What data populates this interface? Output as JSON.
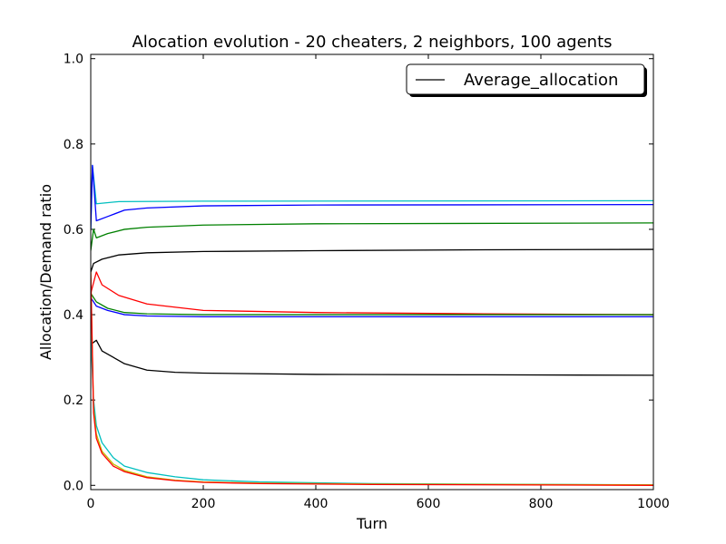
{
  "chart_data": {
    "type": "line",
    "title": "Alocation evolution - 20 cheaters, 2 neighbors, 100 agents",
    "xlabel": "Turn",
    "ylabel": "Allocation/Demand ratio",
    "xlim": [
      0,
      1000
    ],
    "ylim": [
      -0.01,
      1.01
    ],
    "xticks": [
      0,
      200,
      400,
      600,
      800,
      1000
    ],
    "xtick_labels": [
      "0",
      "200",
      "400",
      "600",
      "800",
      "1000"
    ],
    "yticks": [
      0.0,
      0.2,
      0.4,
      0.6,
      0.8,
      1.0
    ],
    "ytick_labels": [
      "0.0",
      "0.2",
      "0.4",
      "0.6",
      "0.8",
      "1.0"
    ],
    "grid": false,
    "legend": {
      "position": "top-right",
      "entries": [
        "Average_allocation"
      ]
    },
    "colors": {
      "cyan": "#00bfbf",
      "blue": "#0000ff",
      "green": "#008000",
      "black": "#000000",
      "red": "#ff0000",
      "olive": "#bfbf00"
    },
    "series": [
      {
        "name": "Average_allocation",
        "color": "#000000",
        "points": [
          [
            0,
            0.5
          ],
          [
            5,
            0.52
          ],
          [
            20,
            0.53
          ],
          [
            50,
            0.54
          ],
          [
            100,
            0.545
          ],
          [
            200,
            0.548
          ],
          [
            400,
            0.55
          ],
          [
            700,
            0.552
          ],
          [
            1000,
            0.553
          ]
        ]
      },
      {
        "color": "#00bfbf",
        "points": [
          [
            0,
            0.6
          ],
          [
            3,
            0.75
          ],
          [
            10,
            0.66
          ],
          [
            50,
            0.665
          ],
          [
            200,
            0.666
          ],
          [
            1000,
            0.667
          ]
        ]
      },
      {
        "color": "#0000ff",
        "points": [
          [
            0,
            0.6
          ],
          [
            3,
            0.75
          ],
          [
            10,
            0.62
          ],
          [
            30,
            0.63
          ],
          [
            60,
            0.645
          ],
          [
            100,
            0.65
          ],
          [
            200,
            0.655
          ],
          [
            400,
            0.657
          ],
          [
            1000,
            0.658
          ]
        ]
      },
      {
        "color": "#008000",
        "points": [
          [
            0,
            0.55
          ],
          [
            5,
            0.6
          ],
          [
            10,
            0.58
          ],
          [
            30,
            0.59
          ],
          [
            60,
            0.6
          ],
          [
            100,
            0.605
          ],
          [
            200,
            0.61
          ],
          [
            400,
            0.613
          ],
          [
            1000,
            0.615
          ]
        ]
      },
      {
        "color": "#ff0000",
        "points": [
          [
            0,
            0.45
          ],
          [
            10,
            0.5
          ],
          [
            20,
            0.47
          ],
          [
            50,
            0.445
          ],
          [
            100,
            0.425
          ],
          [
            200,
            0.41
          ],
          [
            400,
            0.405
          ],
          [
            700,
            0.402
          ],
          [
            1000,
            0.4
          ]
        ]
      },
      {
        "color": "#0000ff",
        "points": [
          [
            0,
            0.44
          ],
          [
            10,
            0.42
          ],
          [
            30,
            0.41
          ],
          [
            60,
            0.4
          ],
          [
            100,
            0.397
          ],
          [
            200,
            0.395
          ],
          [
            400,
            0.395
          ],
          [
            1000,
            0.395
          ]
        ]
      },
      {
        "color": "#008000",
        "points": [
          [
            0,
            0.45
          ],
          [
            10,
            0.43
          ],
          [
            30,
            0.415
          ],
          [
            60,
            0.405
          ],
          [
            100,
            0.402
          ],
          [
            200,
            0.4
          ],
          [
            400,
            0.4
          ],
          [
            1000,
            0.4
          ]
        ]
      },
      {
        "color": "#000000",
        "points": [
          [
            0,
            0.33
          ],
          [
            10,
            0.34
          ],
          [
            20,
            0.315
          ],
          [
            40,
            0.3
          ],
          [
            60,
            0.285
          ],
          [
            100,
            0.27
          ],
          [
            150,
            0.265
          ],
          [
            200,
            0.263
          ],
          [
            400,
            0.26
          ],
          [
            700,
            0.259
          ],
          [
            1000,
            0.258
          ]
        ]
      },
      {
        "color": "#00bfbf",
        "points": [
          [
            0,
            0.35
          ],
          [
            5,
            0.2
          ],
          [
            10,
            0.14
          ],
          [
            20,
            0.1
          ],
          [
            40,
            0.065
          ],
          [
            60,
            0.045
          ],
          [
            100,
            0.03
          ],
          [
            150,
            0.02
          ],
          [
            200,
            0.013
          ],
          [
            300,
            0.008
          ],
          [
            500,
            0.004
          ],
          [
            1000,
            0.001
          ]
        ]
      },
      {
        "color": "#bfbf00",
        "points": [
          [
            0,
            0.5
          ],
          [
            5,
            0.18
          ],
          [
            10,
            0.12
          ],
          [
            20,
            0.08
          ],
          [
            40,
            0.05
          ],
          [
            60,
            0.035
          ],
          [
            100,
            0.02
          ],
          [
            150,
            0.012
          ],
          [
            200,
            0.008
          ],
          [
            300,
            0.005
          ],
          [
            500,
            0.003
          ],
          [
            1000,
            0.001
          ]
        ]
      },
      {
        "color": "#ff0000",
        "points": [
          [
            0,
            0.5
          ],
          [
            5,
            0.17
          ],
          [
            10,
            0.11
          ],
          [
            20,
            0.075
          ],
          [
            40,
            0.045
          ],
          [
            60,
            0.032
          ],
          [
            100,
            0.018
          ],
          [
            150,
            0.011
          ],
          [
            200,
            0.007
          ],
          [
            300,
            0.004
          ],
          [
            500,
            0.002
          ],
          [
            1000,
            0.0
          ]
        ]
      }
    ]
  }
}
